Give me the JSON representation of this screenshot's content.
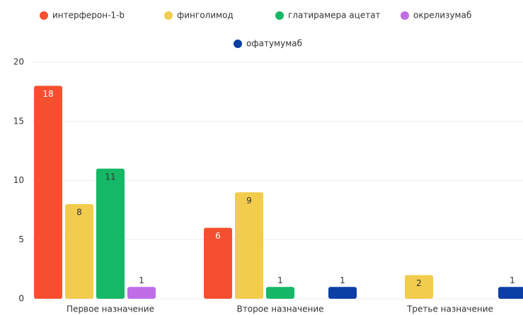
{
  "chart_data": {
    "type": "bar",
    "categories": [
      "Первое назначение",
      "Второе назначение",
      "Третье назначение"
    ],
    "series": [
      {
        "name": "интерферон-1-b",
        "color": "#f4502f",
        "values": [
          18,
          6,
          null
        ]
      },
      {
        "name": "финголимод",
        "color": "#f2cc4d",
        "values": [
          8,
          9,
          2
        ]
      },
      {
        "name": "глатирамера ацетат",
        "color": "#14b866",
        "values": [
          11,
          1,
          null
        ]
      },
      {
        "name": "окрелизумаб",
        "color": "#c06ee8",
        "values": [
          1,
          null,
          null
        ]
      },
      {
        "name": "офатумумаб",
        "color": "#0b3fa5",
        "values": [
          null,
          1,
          1
        ]
      }
    ],
    "ylim": [
      0,
      20
    ],
    "yticks": [
      0,
      5,
      10,
      15,
      20
    ],
    "grid": true
  }
}
